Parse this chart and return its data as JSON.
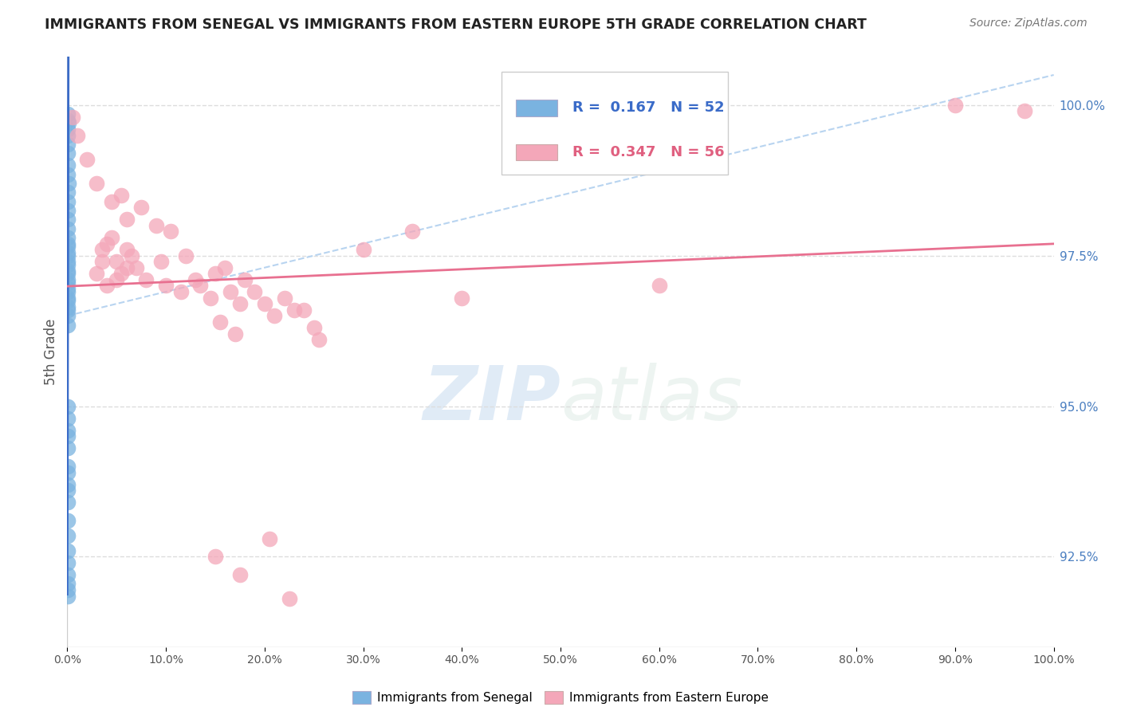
{
  "title": "IMMIGRANTS FROM SENEGAL VS IMMIGRANTS FROM EASTERN EUROPE 5TH GRADE CORRELATION CHART",
  "source": "Source: ZipAtlas.com",
  "ylabel_left": "5th Grade",
  "x_min": 0.0,
  "x_max": 100.0,
  "y_min": 91.0,
  "y_max": 100.8,
  "y_ticks": [
    92.5,
    95.0,
    97.5,
    100.0
  ],
  "x_ticks": [
    0.0,
    10.0,
    20.0,
    30.0,
    40.0,
    50.0,
    60.0,
    70.0,
    80.0,
    90.0,
    100.0
  ],
  "blue_color": "#7ab3e0",
  "pink_color": "#f4a7b9",
  "blue_line_color": "#3a6bc8",
  "pink_line_color": "#e87090",
  "ref_line_color": "#b8d4f0",
  "legend_R_blue": "0.167",
  "legend_N_blue": "52",
  "legend_R_pink": "0.347",
  "legend_N_pink": "56",
  "watermark": "ZIPatlas",
  "background_color": "#ffffff",
  "grid_color": "#dddddd",
  "blue_scatter_x": [
    0.05,
    0.08,
    0.12,
    0.05,
    0.08,
    0.04,
    0.06,
    0.07,
    0.09,
    0.1,
    0.05,
    0.06,
    0.07,
    0.08,
    0.06,
    0.05,
    0.07,
    0.08,
    0.06,
    0.05,
    0.04,
    0.06,
    0.07,
    0.05,
    0.06,
    0.04,
    0.05,
    0.06,
    0.07,
    0.05,
    0.04,
    0.05,
    0.06,
    0.04,
    0.05,
    0.04,
    0.05,
    0.04,
    0.05,
    0.04,
    0.05,
    0.04,
    0.05,
    0.04,
    0.05,
    0.04,
    0.05,
    0.04,
    0.05,
    0.04,
    0.04,
    0.05
  ],
  "blue_scatter_y": [
    99.85,
    99.75,
    99.7,
    99.6,
    99.5,
    99.35,
    99.2,
    99.0,
    98.85,
    98.7,
    98.55,
    98.4,
    98.25,
    98.1,
    97.95,
    97.8,
    97.65,
    97.5,
    97.35,
    97.2,
    97.05,
    96.9,
    96.75,
    96.6,
    97.7,
    97.55,
    97.4,
    97.25,
    97.1,
    96.95,
    96.8,
    96.65,
    96.5,
    96.35,
    95.0,
    94.8,
    94.5,
    94.3,
    94.0,
    93.7,
    93.4,
    93.1,
    92.85,
    92.6,
    92.4,
    92.2,
    92.05,
    91.95,
    91.85,
    94.6,
    93.9,
    93.6
  ],
  "pink_scatter_x": [
    0.5,
    1.0,
    2.0,
    3.0,
    4.5,
    5.5,
    6.0,
    7.5,
    9.0,
    10.5,
    3.5,
    4.0,
    5.0,
    6.5,
    7.0,
    4.5,
    5.5,
    6.0,
    8.0,
    9.5,
    10.0,
    11.5,
    13.0,
    14.5,
    16.0,
    17.5,
    19.0,
    21.0,
    23.0,
    25.0,
    12.0,
    13.5,
    15.0,
    16.5,
    18.0,
    20.0,
    22.0,
    24.0,
    30.0,
    35.0,
    3.0,
    4.0,
    3.5,
    5.0,
    6.0,
    15.5,
    17.0,
    25.5,
    40.0,
    60.0,
    90.0,
    97.0,
    15.0,
    17.5,
    20.5,
    22.5
  ],
  "pink_scatter_y": [
    99.8,
    99.5,
    99.1,
    98.7,
    98.4,
    98.5,
    98.1,
    98.3,
    98.0,
    97.9,
    97.6,
    97.7,
    97.4,
    97.5,
    97.3,
    97.8,
    97.2,
    97.6,
    97.1,
    97.4,
    97.0,
    96.9,
    97.1,
    96.8,
    97.3,
    96.7,
    96.9,
    96.5,
    96.6,
    96.3,
    97.5,
    97.0,
    97.2,
    96.9,
    97.1,
    96.7,
    96.8,
    96.6,
    97.6,
    97.9,
    97.2,
    97.0,
    97.4,
    97.1,
    97.3,
    96.4,
    96.2,
    96.1,
    96.8,
    97.0,
    100.0,
    99.9,
    92.5,
    92.2,
    92.8,
    91.8
  ]
}
